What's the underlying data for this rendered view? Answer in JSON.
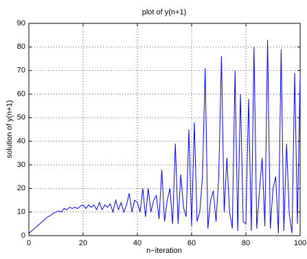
{
  "chart_data": {
    "type": "line",
    "title": "plot of y(n+1)",
    "x_label": "n−iteration",
    "y_label": "solution of y(n+1)",
    "x": [
      0,
      1,
      2,
      3,
      4,
      5,
      6,
      7,
      8,
      9,
      10,
      11,
      12,
      13,
      14,
      15,
      16,
      17,
      18,
      19,
      20,
      21,
      22,
      23,
      24,
      25,
      26,
      27,
      28,
      29,
      30,
      31,
      32,
      33,
      34,
      35,
      36,
      37,
      38,
      39,
      40,
      41,
      42,
      43,
      44,
      45,
      46,
      47,
      48,
      49,
      50,
      51,
      52,
      53,
      54,
      55,
      56,
      57,
      58,
      59,
      60,
      61,
      62,
      63,
      64,
      65,
      66,
      67,
      68,
      69,
      70,
      71,
      72,
      73,
      74,
      75,
      76,
      77,
      78,
      79,
      80,
      81,
      82,
      83,
      84,
      85,
      86,
      87,
      88,
      89,
      90,
      91,
      92,
      93,
      94,
      95,
      96,
      97,
      98,
      99,
      100
    ],
    "series": [
      {
        "color": "#0000ff",
        "values": [
          1,
          2,
          3,
          4,
          5,
          6,
          7,
          8,
          8.5,
          9.5,
          10,
          10.5,
          10,
          11.5,
          11,
          12,
          11.5,
          12,
          11.5,
          12.5,
          13,
          11.5,
          13,
          12,
          13,
          11,
          14,
          11,
          13,
          12,
          13.5,
          10,
          15,
          11,
          14,
          10,
          13,
          18,
          10,
          15,
          14,
          10,
          20,
          8,
          20,
          10,
          15,
          17,
          7,
          28,
          6,
          15,
          20,
          5,
          39,
          5,
          26,
          12,
          8,
          45,
          4,
          48,
          6,
          10,
          25,
          71,
          3,
          15,
          19,
          6,
          25,
          76,
          10,
          33,
          10,
          3,
          70,
          2,
          60,
          6,
          5,
          58,
          2,
          80,
          3,
          19,
          33,
          4,
          83,
          3,
          20,
          25,
          1,
          79,
          2,
          39,
          9,
          1,
          69,
          5,
          68
        ]
      }
    ],
    "xlim": [
      0,
      100
    ],
    "xticks": [
      0,
      20,
      40,
      60,
      80,
      100
    ],
    "ylim": [
      0,
      90
    ],
    "yticks": [
      0,
      10,
      20,
      30,
      40,
      50,
      60,
      70,
      80,
      90
    ],
    "grid": true
  }
}
